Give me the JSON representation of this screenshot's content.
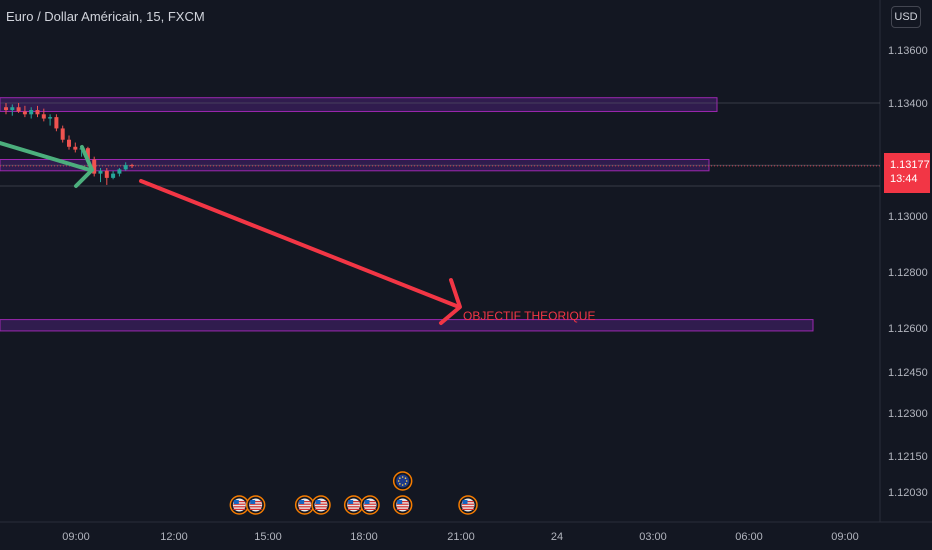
{
  "header": {
    "symbol_title": "Euro / Dollar Américain, 15, FXCM",
    "currency_button": "USD"
  },
  "price_tag": {
    "price": "1.13177",
    "countdown": "13:44"
  },
  "annotation": {
    "label": "OBJECTIF THEORIQUE"
  },
  "colors": {
    "background": "#131722",
    "zone_fill": "#3b1f5e",
    "zone_border": "#9c27b0",
    "bear_candle": "#ef5350",
    "bull_candle": "#26a69a",
    "red_arrow": "#f23645",
    "green_arrow": "#4caf7d",
    "axis_text": "#b2b5be"
  },
  "chart_data": {
    "type": "candlestick",
    "symbol": "EURUSD",
    "timeframe": "15",
    "y_ticks": [
      "1.13600",
      "1.13400",
      "1.13177",
      "1.13000",
      "1.12800",
      "1.12600",
      "1.12450",
      "1.12300",
      "1.12150",
      "1.12030"
    ],
    "x_ticks": [
      "09:00",
      "12:00",
      "15:00",
      "18:00",
      "21:00",
      "24",
      "03:00",
      "06:00",
      "09:00"
    ],
    "zones": [
      {
        "y_from": 1.1337,
        "y_to": 1.1342
      },
      {
        "y_from": 1.1316,
        "y_to": 1.132
      },
      {
        "y_from": 1.1259,
        "y_to": 1.1263
      }
    ],
    "candles": [
      {
        "o": 1.13385,
        "h": 1.134,
        "l": 1.1336,
        "c": 1.13375
      },
      {
        "o": 1.13375,
        "h": 1.13395,
        "l": 1.13355,
        "c": 1.13385
      },
      {
        "o": 1.13385,
        "h": 1.134,
        "l": 1.13365,
        "c": 1.1337
      },
      {
        "o": 1.1337,
        "h": 1.1339,
        "l": 1.1335,
        "c": 1.1336
      },
      {
        "o": 1.1336,
        "h": 1.13385,
        "l": 1.13345,
        "c": 1.13375
      },
      {
        "o": 1.13375,
        "h": 1.1339,
        "l": 1.1335,
        "c": 1.1336
      },
      {
        "o": 1.1336,
        "h": 1.1338,
        "l": 1.13335,
        "c": 1.13345
      },
      {
        "o": 1.13345,
        "h": 1.1336,
        "l": 1.1332,
        "c": 1.1335
      },
      {
        "o": 1.1335,
        "h": 1.1336,
        "l": 1.133,
        "c": 1.1331
      },
      {
        "o": 1.1331,
        "h": 1.1332,
        "l": 1.1326,
        "c": 1.1327
      },
      {
        "o": 1.1327,
        "h": 1.13285,
        "l": 1.13235,
        "c": 1.13245
      },
      {
        "o": 1.13245,
        "h": 1.1326,
        "l": 1.13225,
        "c": 1.13235
      },
      {
        "o": 1.13235,
        "h": 1.1325,
        "l": 1.1321,
        "c": 1.1324
      },
      {
        "o": 1.1324,
        "h": 1.13245,
        "l": 1.1319,
        "c": 1.132
      },
      {
        "o": 1.132,
        "h": 1.1321,
        "l": 1.1314,
        "c": 1.1315
      },
      {
        "o": 1.1315,
        "h": 1.1317,
        "l": 1.1312,
        "c": 1.1316
      },
      {
        "o": 1.1316,
        "h": 1.1317,
        "l": 1.1311,
        "c": 1.13135
      },
      {
        "o": 1.13135,
        "h": 1.1316,
        "l": 1.1313,
        "c": 1.1315
      },
      {
        "o": 1.1315,
        "h": 1.1317,
        "l": 1.1314,
        "c": 1.13165
      },
      {
        "o": 1.13165,
        "h": 1.1319,
        "l": 1.1316,
        "c": 1.1318
      },
      {
        "o": 1.1318,
        "h": 1.13185,
        "l": 1.1317,
        "c": 1.13177
      }
    ],
    "events": [
      {
        "flag": "us",
        "row": "bottom",
        "x_time": "14:00"
      },
      {
        "flag": "us",
        "row": "bottom",
        "x_time": "14:30"
      },
      {
        "flag": "us",
        "row": "bottom",
        "x_time": "16:00"
      },
      {
        "flag": "us",
        "row": "bottom",
        "x_time": "16:30"
      },
      {
        "flag": "us",
        "row": "bottom",
        "x_time": "17:30"
      },
      {
        "flag": "us",
        "row": "bottom",
        "x_time": "18:00"
      },
      {
        "flag": "us",
        "row": "bottom",
        "x_time": "19:00"
      },
      {
        "flag": "eu",
        "row": "top",
        "x_time": "19:00"
      },
      {
        "flag": "us",
        "row": "bottom",
        "x_time": "21:00"
      }
    ]
  }
}
